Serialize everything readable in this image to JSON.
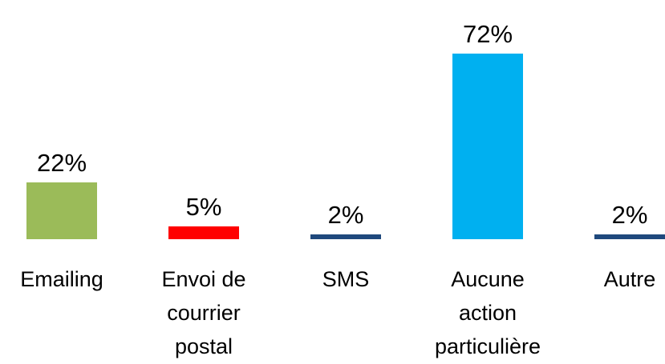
{
  "chart_data": {
    "type": "bar",
    "categories": [
      "Emailing",
      "Envoi de courrier postal",
      "SMS",
      "Aucune action particulière",
      "Autre"
    ],
    "values": [
      22,
      5,
      2,
      72,
      2
    ],
    "value_labels": [
      "22%",
      "5%",
      "2%",
      "72%",
      "2%"
    ],
    "colors": [
      "#9bbb59",
      "#ff0000",
      "#1f497d",
      "#00b0f0",
      "#1f497d"
    ]
  }
}
